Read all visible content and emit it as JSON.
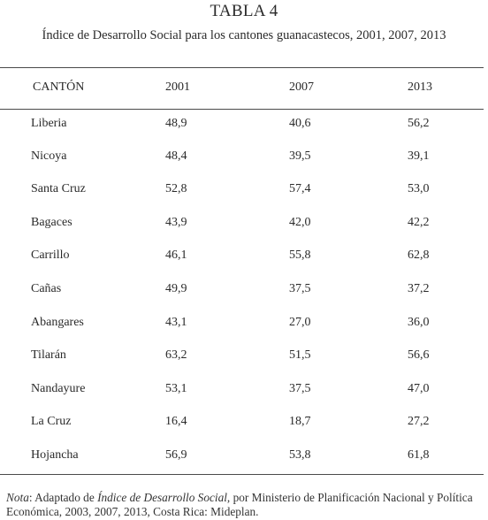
{
  "title": "TABLA 4",
  "subtitle": "Índice de Desarrollo Social para los cantones guanacastecos, 2001, 2007, 2013",
  "table": {
    "headers": [
      "CANTÓN",
      "2001",
      "2007",
      "2013"
    ],
    "rows": [
      [
        "Liberia",
        "48,9",
        "40,6",
        "56,2"
      ],
      [
        "Nicoya",
        "48,4",
        "39,5",
        "39,1"
      ],
      [
        "Santa Cruz",
        "52,8",
        "57,4",
        "53,0"
      ],
      [
        "Bagaces",
        "43,9",
        "42,0",
        "42,2"
      ],
      [
        "Carrillo",
        "46,1",
        "55,8",
        "62,8"
      ],
      [
        "Cañas",
        "49,9",
        "37,5",
        "37,2"
      ],
      [
        "Abangares",
        "43,1",
        "27,0",
        "36,0"
      ],
      [
        "Tilarán",
        "63,2",
        "51,5",
        "56,6"
      ],
      [
        "Nandayure",
        "53,1",
        "37,5",
        "47,0"
      ],
      [
        "La Cruz",
        "16,4",
        "18,7",
        "27,2"
      ],
      [
        "Hojancha",
        "56,9",
        "53,8",
        "61,8"
      ]
    ]
  },
  "note": {
    "label": "Nota",
    "text_before": ": Adaptado de ",
    "source_title": "Índice de Desarrollo Social",
    "text_after": ", por Ministerio de Planificación Nacional y Política Económica, 2003, 2007, 2013, Costa Rica: Mideplan."
  }
}
